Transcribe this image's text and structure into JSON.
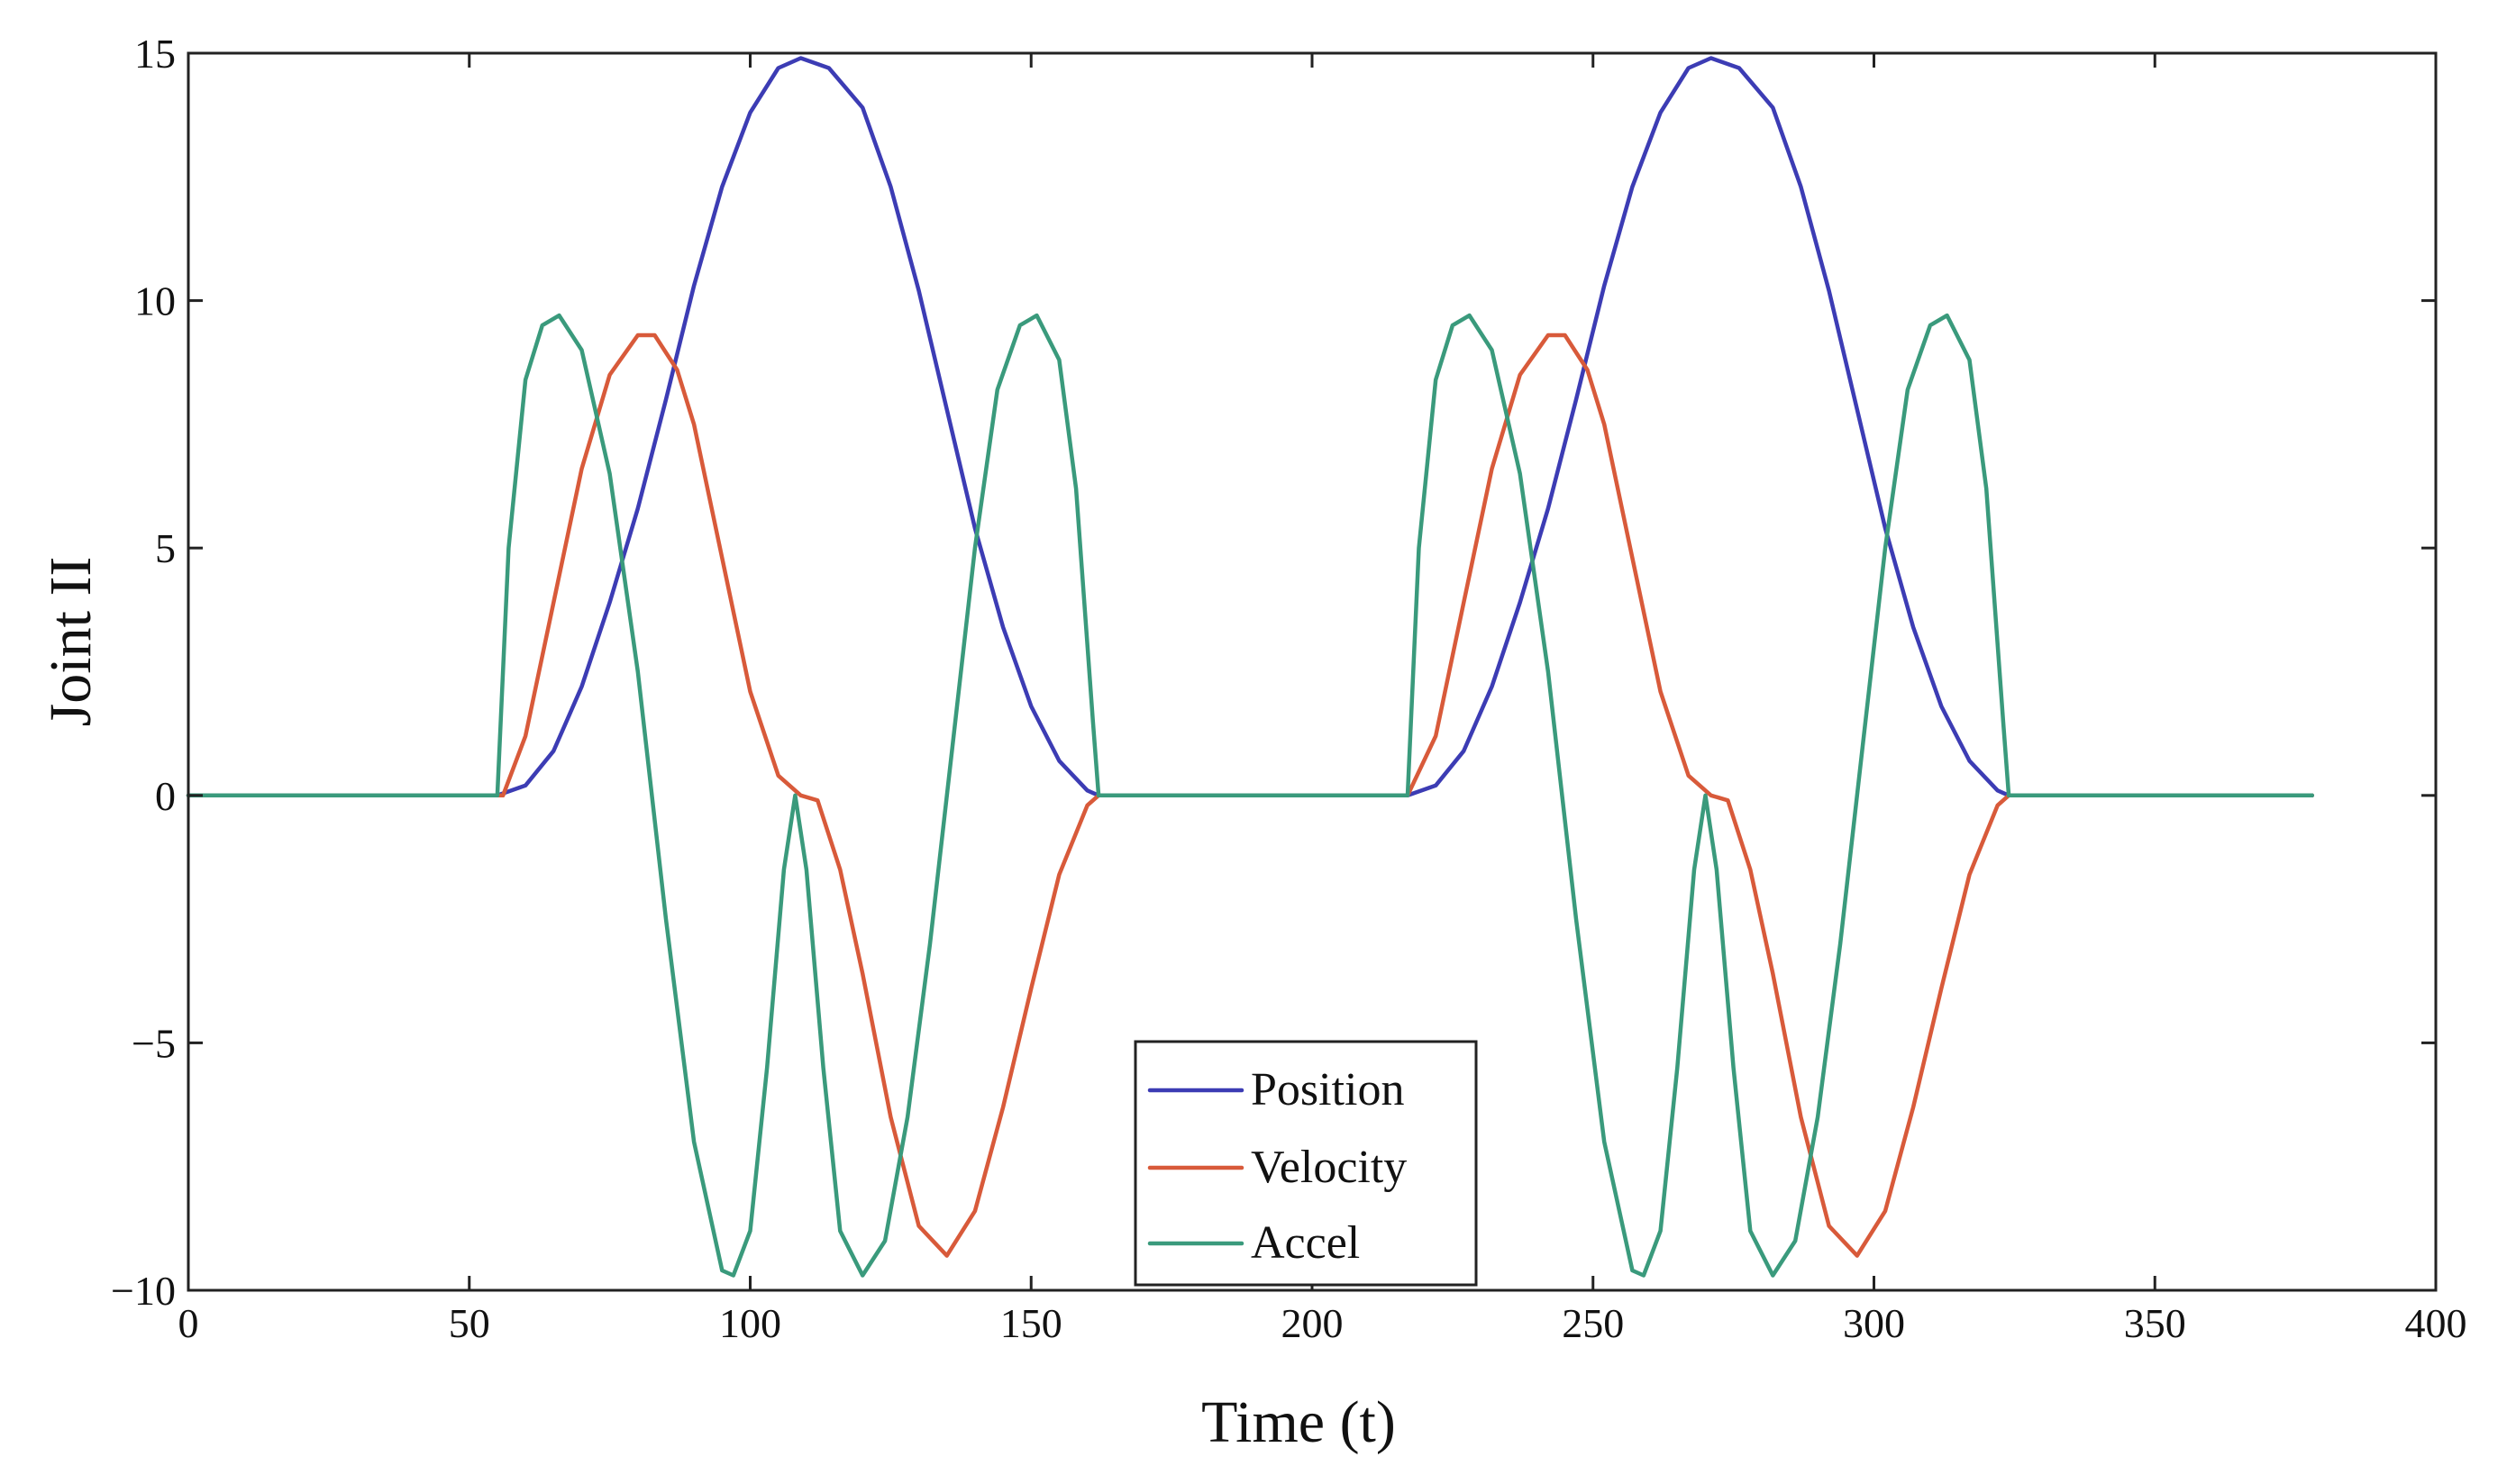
{
  "chart_data": {
    "type": "line",
    "title": "",
    "xlabel": "Time (t)",
    "ylabel": "Joint II",
    "xlim": [
      0,
      400
    ],
    "ylim": [
      -10,
      15
    ],
    "xticks": [
      0,
      50,
      100,
      150,
      200,
      250,
      300,
      350,
      400
    ],
    "yticks": [
      15,
      10,
      5,
      0,
      -5,
      -10
    ],
    "xtick_labels": [
      "0",
      "50",
      "100",
      "150",
      "200",
      "250",
      "300",
      "350",
      "400"
    ],
    "ytick_labels": [
      "15",
      "10",
      "5",
      "0",
      "−5",
      "−10"
    ],
    "grid": false,
    "legend_position": "bottom-center",
    "series": [
      {
        "name": "Position",
        "color": "#3c3cb4",
        "x": [
          0,
          55,
          60,
          65,
          70,
          75,
          80,
          85,
          90,
          95,
          100,
          105,
          109,
          114,
          120,
          125,
          130,
          135,
          140,
          145,
          150,
          155,
          160,
          162,
          217,
          222,
          227,
          232,
          237,
          242,
          247,
          252,
          257,
          262,
          267,
          271,
          276,
          282,
          287,
          292,
          297,
          302,
          307,
          312,
          317,
          322,
          324,
          378
        ],
        "values": [
          0,
          0,
          0.2,
          0.9,
          2.2,
          3.9,
          5.8,
          8.0,
          10.3,
          12.3,
          13.8,
          14.7,
          14.9,
          14.7,
          13.9,
          12.3,
          10.2,
          7.8,
          5.4,
          3.4,
          1.8,
          0.7,
          0.1,
          0,
          0,
          0.2,
          0.9,
          2.2,
          3.9,
          5.8,
          8.0,
          10.3,
          12.3,
          13.8,
          14.7,
          14.9,
          14.7,
          13.9,
          12.3,
          10.2,
          7.8,
          5.4,
          3.4,
          1.8,
          0.7,
          0.1,
          0,
          0
        ]
      },
      {
        "name": "Velocity",
        "color": "#d85a3a",
        "x": [
          0,
          56,
          60,
          65,
          70,
          75,
          80,
          83,
          87,
          90,
          95,
          100,
          105,
          109,
          112,
          116,
          120,
          125,
          130,
          135,
          140,
          145,
          150,
          155,
          160,
          162,
          217,
          222,
          227,
          232,
          237,
          242,
          245,
          249,
          252,
          257,
          262,
          267,
          271,
          274,
          278,
          282,
          287,
          292,
          297,
          302,
          307,
          312,
          317,
          322,
          324,
          378
        ],
        "values": [
          0,
          0,
          1.2,
          3.9,
          6.6,
          8.5,
          9.3,
          9.3,
          8.6,
          7.5,
          4.8,
          2.1,
          0.4,
          0,
          -0.1,
          -1.5,
          -3.6,
          -6.5,
          -8.7,
          -9.3,
          -8.4,
          -6.3,
          -3.9,
          -1.6,
          -0.2,
          0,
          0,
          1.2,
          3.9,
          6.6,
          8.5,
          9.3,
          9.3,
          8.6,
          7.5,
          4.8,
          2.1,
          0.4,
          0,
          -0.1,
          -1.5,
          -3.6,
          -6.5,
          -8.7,
          -9.3,
          -8.4,
          -6.3,
          -3.9,
          -1.6,
          -0.2,
          0,
          0
        ]
      },
      {
        "name": "Accel",
        "color": "#3a9a7c",
        "x": [
          0,
          55,
          57,
          60,
          63,
          66,
          70,
          75,
          80,
          85,
          90,
          95,
          97,
          100,
          103,
          106,
          108,
          110,
          113,
          116,
          120,
          124,
          128,
          132,
          136,
          140,
          144,
          148,
          151,
          155,
          158,
          161,
          162,
          217,
          219,
          222,
          225,
          228,
          232,
          237,
          242,
          247,
          252,
          257,
          259,
          262,
          265,
          268,
          270,
          272,
          275,
          278,
          282,
          286,
          290,
          294,
          298,
          302,
          306,
          310,
          313,
          317,
          320,
          323,
          324,
          378
        ],
        "values": [
          0,
          0,
          5.0,
          8.4,
          9.5,
          9.7,
          9.0,
          6.5,
          2.5,
          -2.5,
          -7.0,
          -9.6,
          -9.7,
          -8.8,
          -5.5,
          -1.5,
          0,
          -1.5,
          -5.5,
          -8.8,
          -9.7,
          -9.0,
          -6.5,
          -3.0,
          1.0,
          5.0,
          8.2,
          9.5,
          9.7,
          8.8,
          6.2,
          1.5,
          0,
          0,
          5.0,
          8.4,
          9.5,
          9.7,
          9.0,
          6.5,
          2.5,
          -2.5,
          -7.0,
          -9.6,
          -9.7,
          -8.8,
          -5.5,
          -1.5,
          0,
          -1.5,
          -5.5,
          -8.8,
          -9.7,
          -9.0,
          -6.5,
          -3.0,
          1.0,
          5.0,
          8.2,
          9.5,
          9.7,
          8.8,
          6.2,
          1.5,
          0,
          0
        ]
      }
    ]
  }
}
